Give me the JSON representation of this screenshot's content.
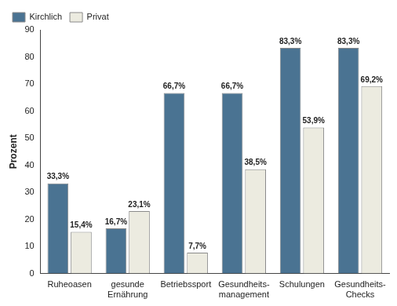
{
  "chart_data": {
    "type": "bar",
    "y_label": "Prozent",
    "categories": [
      "Ruheoasen",
      "gesunde\nErnährung",
      "Betriebssport",
      "Gesundheits-\nmanagement",
      "Schulungen",
      "Gesundheits-\nChecks"
    ],
    "series": [
      {
        "name": "Kirchlich",
        "color": "#4a7392",
        "values": [
          33.3,
          16.7,
          66.7,
          66.7,
          83.3,
          83.3
        ],
        "value_labels": [
          "33,3%",
          "16,7%",
          "66,7%",
          "66,7%",
          "83,3%",
          "83,3%"
        ]
      },
      {
        "name": "Privat",
        "color": "#ecebe0",
        "values": [
          15.4,
          23.1,
          7.7,
          38.5,
          53.9,
          69.2
        ],
        "value_labels": [
          "15,4%",
          "23,1%",
          "7,7%",
          "38,5%",
          "53,9%",
          "69,2%"
        ]
      }
    ],
    "ylim": [
      0,
      90
    ],
    "yticks": [
      0,
      10,
      20,
      30,
      40,
      50,
      60,
      70,
      80,
      90
    ],
    "grid": false,
    "legend": "upper left",
    "data_labels": true
  }
}
